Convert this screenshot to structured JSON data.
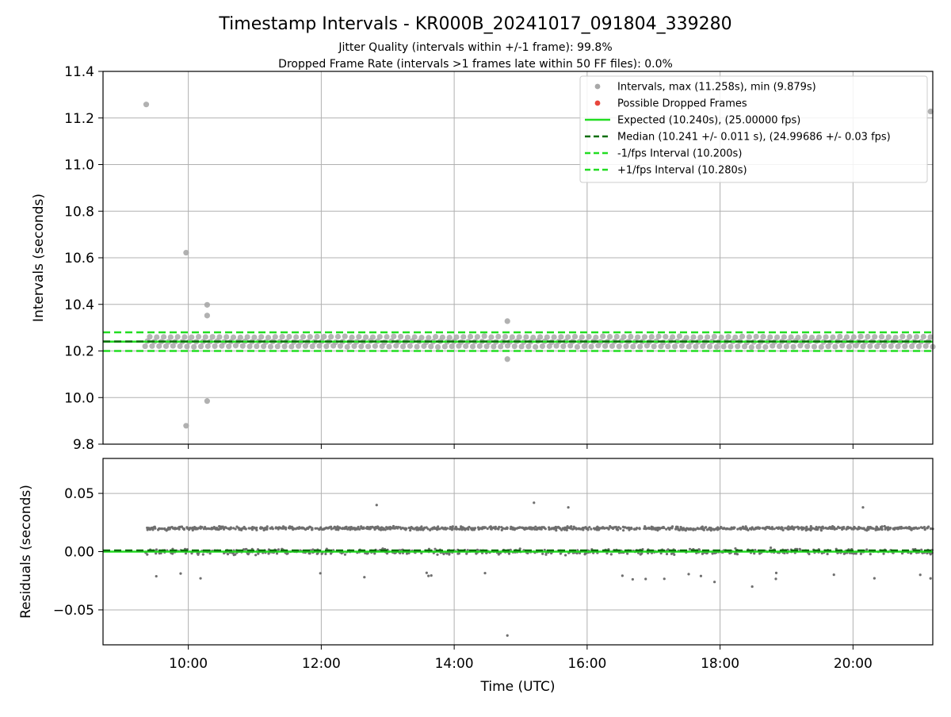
{
  "title": "Timestamp Intervals - KR000B_20241017_091804_339280",
  "subtitle_line1": "Jitter Quality (intervals within +/-1 frame): 99.8%",
  "subtitle_line2": "Dropped Frame Rate (intervals >1 frames late within 50 FF files): 0.0%",
  "colors": {
    "interval_points": "#808080",
    "dropped_frames": "#e8463c",
    "expected": "#22dd22",
    "median": "#0a6e0a",
    "fps_bounds": "#22dd22",
    "grid": "#b0b0b0"
  },
  "chart_data": [
    {
      "type": "scatter",
      "ylabel": "Intervals (seconds)",
      "ylim": [
        9.8,
        11.4
      ],
      "yticks": [
        9.8,
        10.0,
        10.2,
        10.4,
        10.6,
        10.8,
        11.0,
        11.2,
        11.4
      ],
      "ytick_labels": [
        "9.8",
        "10.0",
        "10.2",
        "10.4",
        "10.6",
        "10.8",
        "11.0",
        "11.2",
        "11.4"
      ],
      "x_range_hours": [
        "08:43",
        "21:12"
      ],
      "xticks": [
        "10:00",
        "12:00",
        "14:00",
        "16:00",
        "18:00",
        "20:00"
      ],
      "grid": true,
      "legend_position": "top-right",
      "legend": [
        {
          "label": "Intervals, max (11.258s), min (9.879s)",
          "marker": "dot",
          "color": "#a8a8a8"
        },
        {
          "label": "Possible Dropped Frames",
          "marker": "dot",
          "color": "#e8463c"
        },
        {
          "label": "Expected (10.240s), (25.00000 fps)",
          "marker": "solid",
          "color": "#22dd22"
        },
        {
          "label": "Median (10.241 +/- 0.011 s), (24.99686 +/- 0.03 fps)",
          "marker": "dashed",
          "color": "#0a6e0a"
        },
        {
          "label": "-1/fps Interval (10.200s)",
          "marker": "dashed",
          "color": "#22dd22"
        },
        {
          "label": "+1/fps Interval (10.280s)",
          "marker": "dashed",
          "color": "#22dd22"
        }
      ],
      "series": [
        {
          "name": "Intervals, max (11.258s), min (9.879s)",
          "kind": "scatter",
          "band_values": [
            10.22,
            10.24,
            10.26
          ],
          "band_x_range": [
            "09:21",
            "21:12"
          ],
          "outliers": [
            {
              "x": "09:22",
              "y": 11.258
            },
            {
              "x": "09:58",
              "y": 10.622
            },
            {
              "x": "09:58",
              "y": 9.879
            },
            {
              "x": "10:17",
              "y": 10.398
            },
            {
              "x": "10:17",
              "y": 10.352
            },
            {
              "x": "10:17",
              "y": 9.985
            },
            {
              "x": "14:48",
              "y": 10.328
            },
            {
              "x": "14:48",
              "y": 10.165
            },
            {
              "x": "21:10",
              "y": 11.228
            }
          ]
        },
        {
          "name": "Expected (10.240s), (25.00000 fps)",
          "kind": "hline",
          "y": 10.24
        },
        {
          "name": "Median (10.241 +/- 0.011 s), (24.99686 +/- 0.03 fps)",
          "kind": "hline",
          "y": 10.241
        },
        {
          "name": "-1/fps Interval (10.200s)",
          "kind": "hline",
          "y": 10.2
        },
        {
          "name": "+1/fps Interval (10.280s)",
          "kind": "hline",
          "y": 10.28
        }
      ]
    },
    {
      "type": "scatter",
      "xlabel": "Time (UTC)",
      "ylabel": "Residuals (seconds)",
      "ylim": [
        -0.08,
        0.08
      ],
      "yticks": [
        -0.05,
        0.0,
        0.05
      ],
      "ytick_labels": [
        "−0.05",
        "0.00",
        "0.05"
      ],
      "xticks": [
        "10:00",
        "12:00",
        "14:00",
        "16:00",
        "18:00",
        "20:00"
      ],
      "grid": true,
      "series": [
        {
          "name": "Residuals",
          "kind": "scatter",
          "band_values": [
            0.02,
            0.0
          ],
          "band_x_range": [
            "09:21",
            "21:12"
          ],
          "outliers": [
            {
              "x": "12:50",
              "y": 0.04
            },
            {
              "x": "15:12",
              "y": 0.042
            },
            {
              "x": "15:43",
              "y": 0.038
            },
            {
              "x": "20:09",
              "y": 0.038
            },
            {
              "x": "14:48",
              "y": -0.072
            },
            {
              "x": "17:55",
              "y": -0.026
            },
            {
              "x": "18:29",
              "y": -0.03
            },
            {
              "x": "21:10",
              "y": -0.023
            }
          ]
        },
        {
          "name": "Expected",
          "kind": "hline",
          "y": 0.0
        },
        {
          "name": "Median",
          "kind": "hline",
          "y": 0.001
        }
      ]
    }
  ]
}
